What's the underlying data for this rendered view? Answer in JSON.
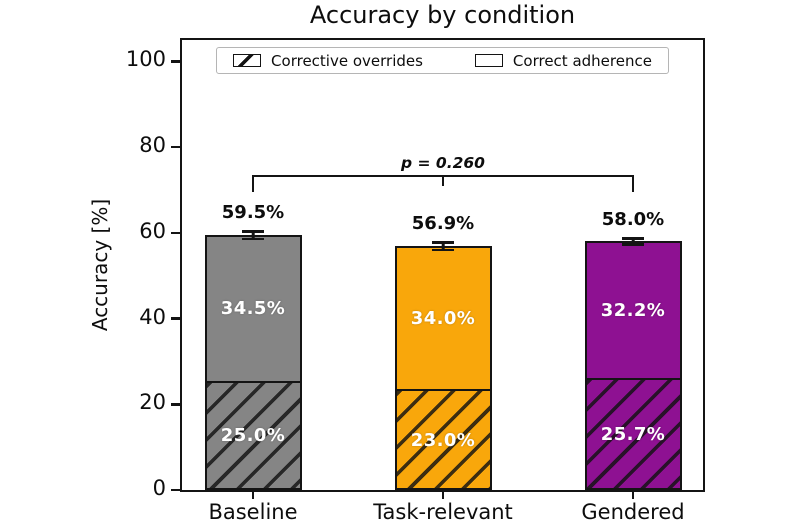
{
  "chart_data": {
    "type": "bar",
    "stacked": true,
    "title": "Accuracy by condition",
    "ylabel": "Accuracy [%]",
    "xlabel": "",
    "ylim": [
      0,
      105
    ],
    "yticks": [
      0,
      20,
      40,
      60,
      80,
      100
    ],
    "grid": false,
    "legend_position": "upper center inside plot, horizontal, boxed",
    "categories": [
      "Baseline",
      "Task-relevant",
      "Gendered"
    ],
    "series": [
      {
        "name": "Corrective overrides",
        "hatch": "/",
        "values": [
          25.0,
          23.0,
          25.7
        ],
        "labels": [
          "25.0%",
          "23.0%",
          "25.7%"
        ]
      },
      {
        "name": "Correct adherence",
        "hatch": null,
        "values": [
          34.5,
          34.0,
          32.2
        ],
        "labels": [
          "34.5%",
          "34.0%",
          "32.2%"
        ]
      }
    ],
    "totals": [
      59.5,
      56.9,
      58.0
    ],
    "total_labels": [
      "59.5%",
      "56.9%",
      "58.0%"
    ],
    "error_bars": [
      1.0,
      1.0,
      0.8
    ],
    "bar_colors": [
      "#858585",
      "#f9a70b",
      "#8e1192"
    ],
    "bar_edge_color": "#141414",
    "value_label_color": "#ffffff",
    "annotation": {
      "text": "p = 0.260",
      "between": [
        "Baseline",
        "Gendered"
      ],
      "bracket_y": 73
    }
  }
}
